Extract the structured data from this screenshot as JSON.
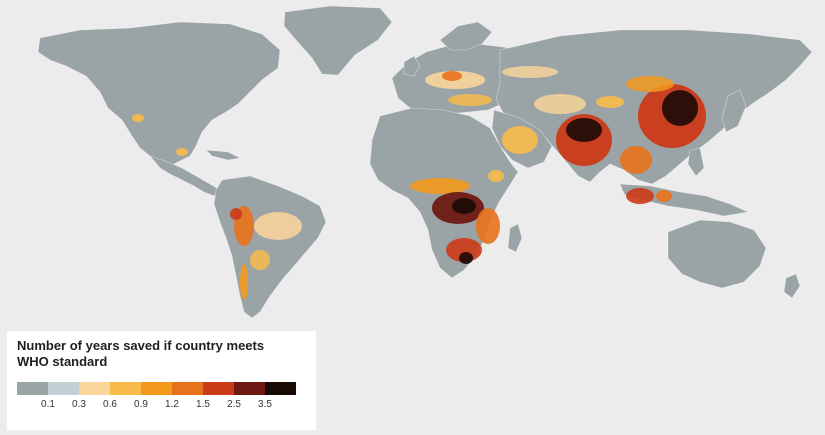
{
  "legend": {
    "title_line1": "Number of years saved if country meets",
    "title_line2": "WHO standard",
    "colors": [
      "#9aa3a6",
      "#c3d0d4",
      "#fbd69a",
      "#f8bb4a",
      "#f39a1d",
      "#e8721c",
      "#cc3a17",
      "#6e1a12",
      "#1a0a05"
    ],
    "ticks": [
      "0.1",
      "0.3",
      "0.6",
      "0.9",
      "1.2",
      "1.5",
      "2.5",
      "3.5"
    ]
  },
  "colors": {
    "background": "#ececec",
    "land": "#9aa3a6"
  }
}
